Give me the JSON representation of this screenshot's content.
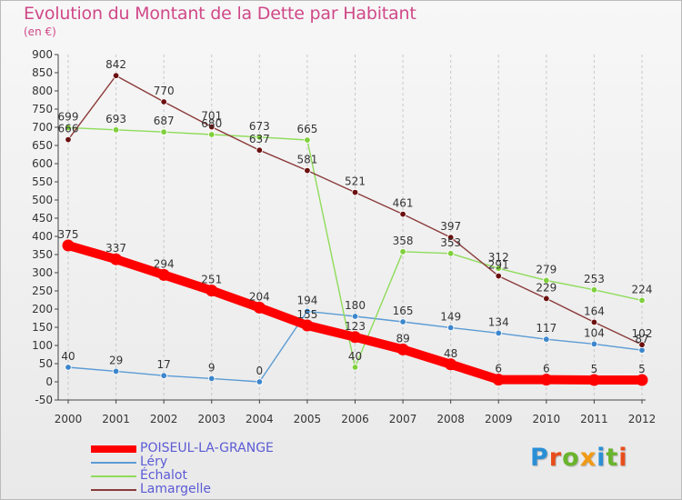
{
  "title": "Evolution du Montant de la Dette par Habitant",
  "unit_label": "(en €)",
  "brand": {
    "text": "Proxiti",
    "letters": [
      {
        "ch": "P",
        "color": "#2b8fd6"
      },
      {
        "ch": "r",
        "color": "#e84d1c"
      },
      {
        "ch": "o",
        "color": "#6ab42d"
      },
      {
        "ch": "x",
        "color": "#f29a14"
      },
      {
        "ch": "i",
        "color": "#2b8fd6"
      },
      {
        "ch": "t",
        "color": "#6ab42d"
      },
      {
        "ch": "i",
        "color": "#e84d1c"
      }
    ]
  },
  "chart_data": {
    "type": "line",
    "title": "Evolution du Montant de la Dette par Habitant",
    "ylabel": "(en €)",
    "x": [
      "2000",
      "2001",
      "2002",
      "2003",
      "2004",
      "2005",
      "2006",
      "2007",
      "2008",
      "2009",
      "2010",
      "2011",
      "2012"
    ],
    "ylim": [
      -50,
      900
    ],
    "yticks": [
      -50,
      0,
      50,
      100,
      150,
      200,
      250,
      300,
      350,
      400,
      450,
      500,
      550,
      600,
      650,
      700,
      750,
      800,
      850,
      900
    ],
    "grid": "vertical",
    "legend_position": "bottom-left",
    "series": [
      {
        "name": "POISEUL-LA-GRANGE",
        "color": "#ff0000",
        "marker_color": "#ff0000",
        "thick": true,
        "values": [
          375,
          337,
          294,
          251,
          204,
          155,
          123,
          89,
          48,
          6,
          6,
          5,
          5
        ]
      },
      {
        "name": "Léry",
        "color": "#5b9bd5",
        "marker_color": "#3d86cc",
        "thick": false,
        "values": [
          40,
          29,
          17,
          9,
          0,
          194,
          180,
          165,
          149,
          134,
          117,
          104,
          87
        ]
      },
      {
        "name": "Échalot",
        "color": "#8fdc5a",
        "marker_color": "#7fd03c",
        "thick": false,
        "values": [
          699,
          693,
          687,
          680,
          673,
          665,
          40,
          358,
          353,
          312,
          279,
          253,
          224
        ]
      },
      {
        "name": "Lamargelle",
        "color": "#8b3a3a",
        "marker_color": "#6b1010",
        "thick": false,
        "values": [
          666,
          842,
          770,
          701,
          637,
          581,
          521,
          461,
          397,
          291,
          229,
          164,
          102
        ]
      }
    ]
  }
}
